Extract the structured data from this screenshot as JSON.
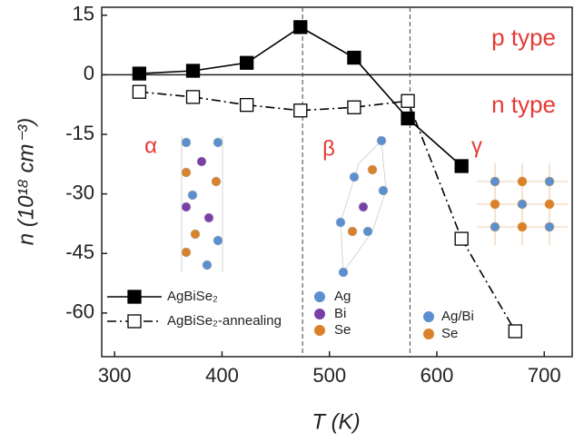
{
  "chart_data": {
    "type": "line",
    "x_label": "T (K)",
    "y_label": "n (10¹⁸ cm⁻³)",
    "xlim": [
      288,
      726
    ],
    "ylim": [
      -71,
      17
    ],
    "xticks": [
      300,
      400,
      500,
      600,
      700
    ],
    "yticks": [
      15,
      0,
      -15,
      -30,
      -45,
      -60
    ],
    "vlines": [
      475,
      575
    ],
    "series": [
      {
        "name": "AgBiSe₂",
        "color": "#000000",
        "marker": "filled",
        "x": [
          323,
          373,
          423,
          473,
          523,
          573,
          623
        ],
        "values": [
          0.3,
          1,
          3,
          12,
          4.3,
          -11,
          -23
        ]
      },
      {
        "name": "AgBiSe₂-annealing",
        "color": "#000000",
        "marker": "open",
        "x": [
          323,
          373,
          423,
          473,
          523,
          573,
          623,
          673
        ],
        "values": [
          -4.3,
          -5.6,
          -7.6,
          -9,
          -8.2,
          -6.6,
          -41.3,
          -64.6
        ]
      }
    ],
    "annotations": [
      "p type",
      "n type",
      "α",
      "β",
      "γ"
    ],
    "structure_labels": [
      [
        "Ag",
        "Bi",
        "Se"
      ],
      [
        "Ag/Bi",
        "Se"
      ]
    ]
  }
}
